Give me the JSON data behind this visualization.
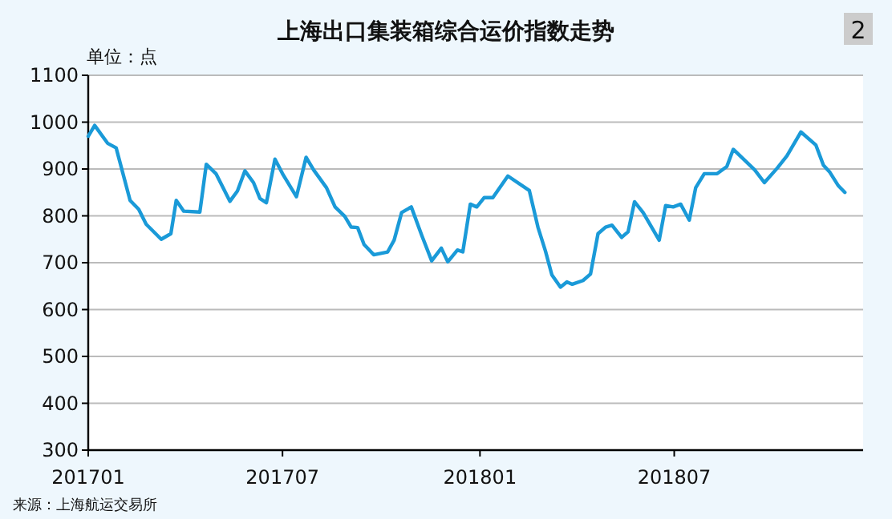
{
  "chart_data": {
    "type": "line",
    "title": "上海出口集装箱综合运价指数走势",
    "ylabel": "单位：点",
    "annotations": [
      "2",
      "来源：上海航运交易所"
    ],
    "x": [
      "2017-01-01",
      "2017-01-07",
      "2017-01-19",
      "2017-01-27",
      "2017-02-09",
      "2017-02-17",
      "2017-02-24",
      "2017-03-10",
      "2017-03-19",
      "2017-03-24",
      "2017-03-31",
      "2017-04-15",
      "2017-04-21",
      "2017-04-30",
      "2017-05-13",
      "2017-05-20",
      "2017-05-27",
      "2017-06-04",
      "2017-06-10",
      "2017-06-16",
      "2017-06-24",
      "2017-07-01",
      "2017-07-14",
      "2017-07-23",
      "2017-07-30",
      "2017-08-11",
      "2017-08-19",
      "2017-08-28",
      "2017-09-03",
      "2017-09-09",
      "2017-09-15",
      "2017-09-24",
      "2017-10-07",
      "2017-10-13",
      "2017-10-20",
      "2017-10-29",
      "2017-11-08",
      "2017-11-17",
      "2017-11-26",
      "2017-12-02",
      "2017-12-11",
      "2017-12-16",
      "2017-12-23",
      "2017-12-29",
      "2018-01-05",
      "2018-01-13",
      "2018-01-27",
      "2018-02-16",
      "2018-02-24",
      "2018-03-03",
      "2018-03-09",
      "2018-03-17",
      "2018-03-23",
      "2018-03-28",
      "2018-04-07",
      "2018-04-14",
      "2018-04-21",
      "2018-04-28",
      "2018-05-04",
      "2018-05-13",
      "2018-05-19",
      "2018-05-25",
      "2018-06-02",
      "2018-06-17",
      "2018-06-23",
      "2018-06-30",
      "2018-07-07",
      "2018-07-15",
      "2018-07-21",
      "2018-07-29",
      "2018-08-10",
      "2018-08-19",
      "2018-08-25",
      "2018-09-14",
      "2018-09-23",
      "2018-10-05",
      "2018-10-14",
      "2018-10-27",
      "2018-11-10",
      "2018-11-17",
      "2018-11-23",
      "2018-12-01",
      "2018-12-07"
    ],
    "series": [
      {
        "color": "#1a9ad8",
        "values": [
          970,
          993,
          955,
          945,
          833,
          814,
          782,
          750,
          762,
          833,
          810,
          808,
          910,
          890,
          831,
          853,
          896,
          871,
          837,
          828,
          921,
          890,
          841,
          925,
          898,
          860,
          819,
          799,
          776,
          775,
          739,
          717,
          723,
          748,
          807,
          819,
          757,
          704,
          731,
          702,
          727,
          723,
          825,
          819,
          839,
          839,
          885,
          854,
          776,
          725,
          674,
          648,
          659,
          654,
          662,
          676,
          762,
          776,
          780,
          754,
          766,
          830,
          807,
          748,
          822,
          819,
          825,
          791,
          860,
          890,
          890,
          905,
          942,
          898,
          871,
          902,
          928,
          979,
          951,
          908,
          893,
          864,
          850
        ]
      }
    ],
    "xlim": [
      "2017-01-01",
      "2018-12-24"
    ],
    "xticks": [
      {
        "value": "2017-01-01",
        "label": "201701"
      },
      {
        "value": "2017-07-01",
        "label": "201707"
      },
      {
        "value": "2018-01-01",
        "label": "201801"
      },
      {
        "value": "2018-07-01",
        "label": "201807"
      }
    ],
    "ylim": [
      300,
      1100
    ],
    "yticks": [
      300,
      400,
      500,
      600,
      700,
      800,
      900,
      1000,
      1100
    ],
    "grid": "y",
    "marker": "none",
    "line_style": "solid"
  }
}
